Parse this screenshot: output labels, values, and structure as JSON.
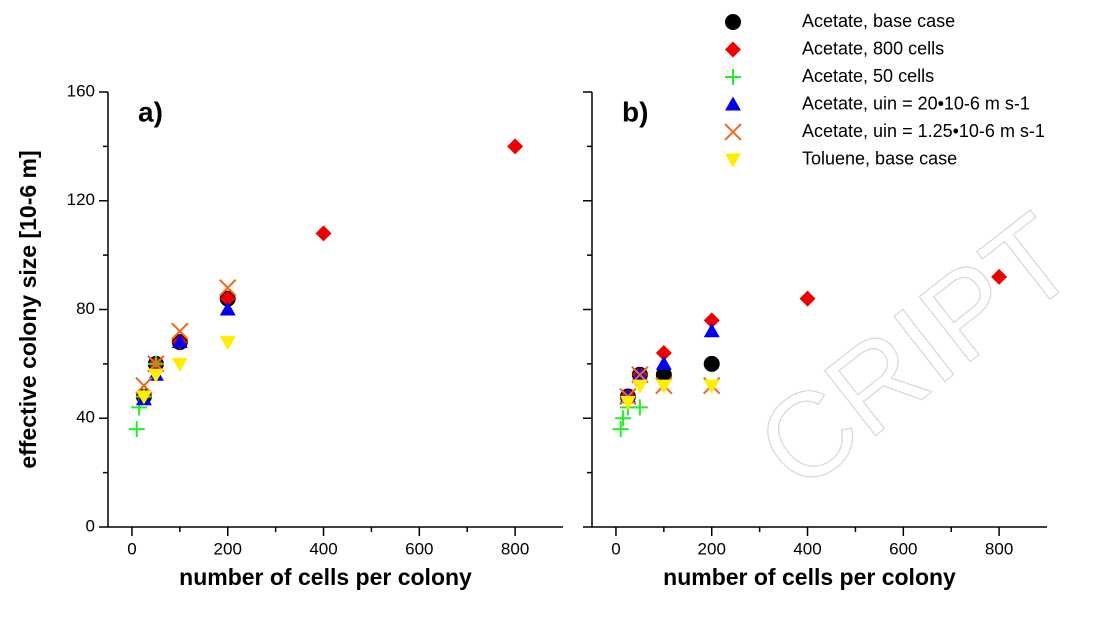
{
  "watermark": "CRIPT",
  "chart_data": [
    {
      "type": "scatter",
      "label": "a)",
      "xlabel": "number of cells per colony",
      "ylabel": "effective colony size [10-6 m]",
      "xlim": [
        -50,
        900
      ],
      "ylim": [
        0,
        160
      ],
      "xticks": [
        0,
        200,
        400,
        600,
        800
      ],
      "yticks": [
        0,
        40,
        80,
        120,
        160
      ],
      "xminorticks": [
        100,
        300,
        500,
        700
      ],
      "yminorticks": [
        20,
        60,
        100,
        140
      ],
      "series": [
        {
          "name": "Acetate, base case",
          "color": "#000000",
          "marker": "circle",
          "x": [
            25,
            50,
            100,
            200
          ],
          "values": [
            48,
            60,
            68,
            84
          ]
        },
        {
          "name": "Acetate, 800 cells",
          "color": "#ee0000",
          "marker": "diamond",
          "x": [
            25,
            50,
            100,
            200,
            400,
            800
          ],
          "values": [
            48,
            60,
            68,
            84,
            108,
            140
          ]
        },
        {
          "name": "Acetate, 50 cells",
          "color": "#22ee22",
          "marker": "plus",
          "x": [
            10,
            15,
            25,
            50
          ],
          "values": [
            36,
            44,
            48,
            60
          ]
        },
        {
          "name": "Acetate, uin = 20•10-6 m s-1",
          "color": "#0000ee",
          "marker": "triangle-up",
          "x": [
            25,
            50,
            100,
            200
          ],
          "values": [
            47,
            56,
            68,
            80
          ]
        },
        {
          "name": "Acetate, uin = 1.25•10-6 m s-1",
          "color": "#ee6a22",
          "marker": "x",
          "x": [
            25,
            50,
            100,
            200
          ],
          "values": [
            52,
            60,
            72,
            88
          ]
        },
        {
          "name": "Toluene, base case",
          "color": "#ffee00",
          "marker": "triangle-down",
          "x": [
            25,
            50,
            100,
            200
          ],
          "values": [
            48,
            56,
            60,
            68
          ]
        }
      ]
    },
    {
      "type": "scatter",
      "label": "b)",
      "xlabel": "number of cells per colony",
      "xlim": [
        -50,
        900
      ],
      "ylim": [
        0,
        160
      ],
      "xticks": [
        0,
        200,
        400,
        600,
        800
      ],
      "yticks": [
        0,
        40,
        80,
        120,
        160
      ],
      "xminorticks": [
        100,
        300,
        500,
        700
      ],
      "yminorticks": [
        20,
        60,
        100,
        140
      ],
      "series": [
        {
          "color": "#000000",
          "marker": "circle",
          "x": [
            25,
            50,
            100,
            200
          ],
          "values": [
            48,
            56,
            56,
            60
          ]
        },
        {
          "color": "#ee0000",
          "marker": "diamond",
          "x": [
            25,
            50,
            100,
            200,
            400,
            800
          ],
          "values": [
            48,
            56,
            64,
            76,
            84,
            92
          ]
        },
        {
          "color": "#22ee22",
          "marker": "plus",
          "x": [
            10,
            15,
            25,
            50
          ],
          "values": [
            36,
            40,
            44,
            44
          ]
        },
        {
          "color": "#0000ee",
          "marker": "triangle-up",
          "x": [
            25,
            50,
            100,
            200
          ],
          "values": [
            48,
            56,
            60,
            72
          ]
        },
        {
          "color": "#ee6a22",
          "marker": "x",
          "x": [
            25,
            50,
            100,
            200
          ],
          "values": [
            48,
            56,
            52,
            52
          ]
        },
        {
          "color": "#ffee00",
          "marker": "triangle-down",
          "x": [
            25,
            50,
            100,
            200
          ],
          "values": [
            46,
            52,
            52,
            52
          ]
        }
      ]
    }
  ]
}
